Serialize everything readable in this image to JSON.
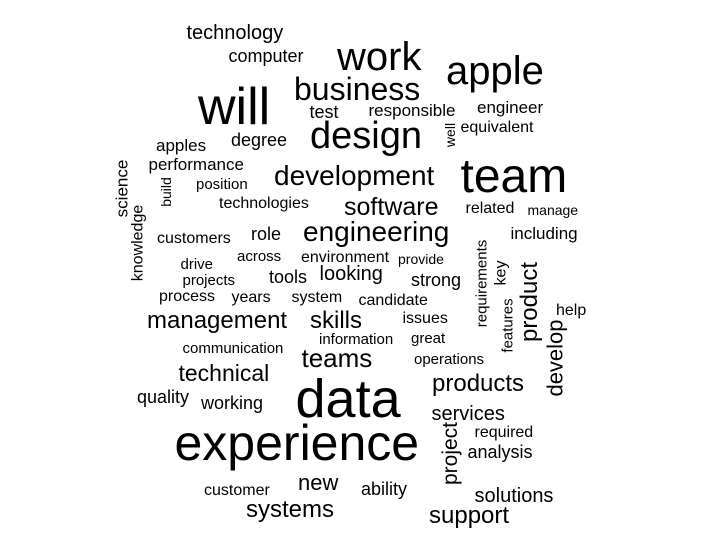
{
  "colors": {
    "text": "#000000",
    "background": "#ffffff"
  },
  "words": [
    {
      "text": "experience"
    },
    {
      "text": "data"
    },
    {
      "text": "team"
    },
    {
      "text": "will"
    },
    {
      "text": "work"
    },
    {
      "text": "apple"
    },
    {
      "text": "design"
    },
    {
      "text": "business"
    },
    {
      "text": "development"
    },
    {
      "text": "engineering"
    },
    {
      "text": "software"
    },
    {
      "text": "technology"
    },
    {
      "text": "computer"
    },
    {
      "text": "test"
    },
    {
      "text": "responsible"
    },
    {
      "text": "engineer"
    },
    {
      "text": "equivalent"
    },
    {
      "text": "well"
    },
    {
      "text": "apples"
    },
    {
      "text": "degree"
    },
    {
      "text": "performance"
    },
    {
      "text": "position"
    },
    {
      "text": "build"
    },
    {
      "text": "science"
    },
    {
      "text": "technologies"
    },
    {
      "text": "related"
    },
    {
      "text": "manage"
    },
    {
      "text": "customers"
    },
    {
      "text": "role"
    },
    {
      "text": "including"
    },
    {
      "text": "knowledge"
    },
    {
      "text": "across"
    },
    {
      "text": "environment"
    },
    {
      "text": "provide"
    },
    {
      "text": "drive"
    },
    {
      "text": "requirements"
    },
    {
      "text": "key"
    },
    {
      "text": "projects"
    },
    {
      "text": "tools"
    },
    {
      "text": "looking"
    },
    {
      "text": "strong"
    },
    {
      "text": "product"
    },
    {
      "text": "process"
    },
    {
      "text": "years"
    },
    {
      "text": "system"
    },
    {
      "text": "candidate"
    },
    {
      "text": "features"
    },
    {
      "text": "help"
    },
    {
      "text": "management"
    },
    {
      "text": "skills"
    },
    {
      "text": "issues"
    },
    {
      "text": "information"
    },
    {
      "text": "great"
    },
    {
      "text": "communication"
    },
    {
      "text": "teams"
    },
    {
      "text": "operations"
    },
    {
      "text": "develop"
    },
    {
      "text": "technical"
    },
    {
      "text": "products"
    },
    {
      "text": "quality"
    },
    {
      "text": "working"
    },
    {
      "text": "services"
    },
    {
      "text": "project"
    },
    {
      "text": "required"
    },
    {
      "text": "analysis"
    },
    {
      "text": "new"
    },
    {
      "text": "customer"
    },
    {
      "text": "ability"
    },
    {
      "text": "solutions"
    },
    {
      "text": "systems"
    },
    {
      "text": "support"
    }
  ]
}
